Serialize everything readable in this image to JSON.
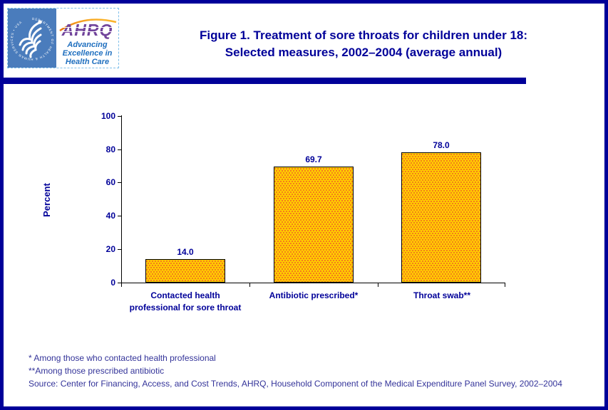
{
  "page": {
    "background": "#FFFFFF",
    "border_color": "#000099"
  },
  "header": {
    "hhs_logo": {
      "circle_text": "DEPARTMENT OF HEALTH & HUMAN SERVICES • USA",
      "background": "#4A7CBC"
    },
    "ahrq_logo": {
      "acronym": "AHRQ",
      "acronym_color": "#71449B",
      "tagline_lines": [
        "Advancing",
        "Excellence in",
        "Health Care"
      ],
      "tagline_color": "#1F6FBF",
      "arc_colors": [
        "#E87511",
        "#FDBB2F"
      ]
    },
    "title_line1": "Figure 1. Treatment of sore throats for children under 18:",
    "title_line2": "Selected measures, 2002–2004 (average annual)",
    "title_color": "#000099"
  },
  "chart_data": {
    "type": "bar",
    "categories": [
      "Contacted health professional for sore throat",
      "Antibiotic prescribed*",
      "Throat swab**"
    ],
    "values": [
      14.0,
      69.7,
      78.0
    ],
    "value_labels": [
      "14.0",
      "69.7",
      "78.0"
    ],
    "title": "",
    "xlabel": "",
    "ylabel": "Percent",
    "ylim": [
      0,
      100
    ],
    "yticks": [
      0,
      20,
      40,
      60,
      80,
      100
    ],
    "ytick_labels_top_to_bottom": [
      "100",
      "80",
      "60",
      "40",
      "20",
      "0"
    ],
    "grid": false,
    "legend": null,
    "bar_fill_color": "#FFCC00",
    "bar_dot_color": "#F26522",
    "bar_border_color": "#000000",
    "axis_color": "#000000",
    "label_color": "#000099"
  },
  "xaxis_display": {
    "labels": [
      {
        "line1": "Contacted health",
        "line2": "professional for sore throat"
      },
      {
        "line1": "Antibiotic prescribed*",
        "line2": ""
      },
      {
        "line1": "Throat swab**",
        "line2": ""
      }
    ]
  },
  "footnotes": [
    "* Among those who contacted health professional",
    "**Among those prescribed antibiotic",
    "Source: Center for Financing, Access, and Cost Trends, AHRQ, Household Component of the Medical Expenditure Panel Survey, 2002–2004"
  ]
}
